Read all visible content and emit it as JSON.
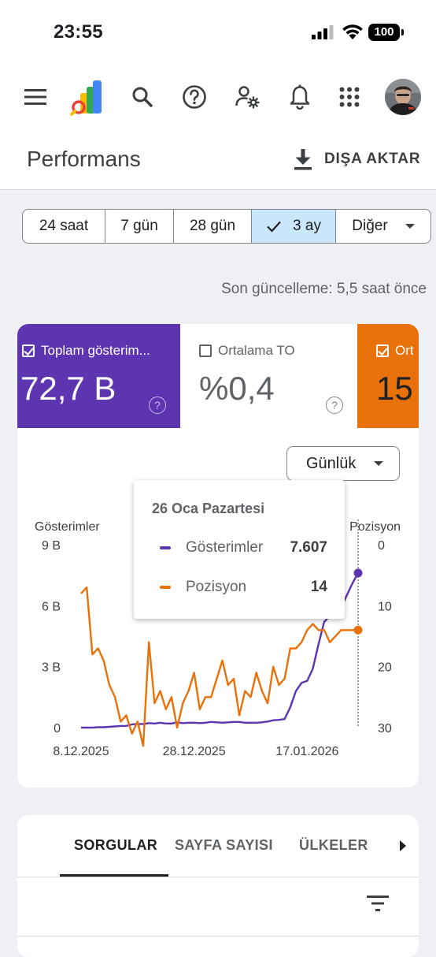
{
  "status": {
    "time": "23:55",
    "battery": "100"
  },
  "appbar": {
    "menu_icon": "hamburger-menu-icon",
    "logo_icon": "search-console-logo-icon",
    "search_icon": "search-icon",
    "help_icon": "help-icon",
    "settings_icon": "account-settings-icon",
    "notifications_icon": "bell-icon",
    "apps_icon": "apps-grid-icon",
    "avatar": "avatar"
  },
  "page": {
    "title": "Performans",
    "export_label": "DIŞA AKTAR"
  },
  "date_ranges": [
    {
      "label": "24 saat",
      "selected": false
    },
    {
      "label": "7 gün",
      "selected": false
    },
    {
      "label": "28 gün",
      "selected": false
    },
    {
      "label": "3 ay",
      "selected": true
    },
    {
      "label": "Diğer",
      "selected": false
    }
  ],
  "last_updated": "Son güncelleme: 5,5 saat önce",
  "metrics": [
    {
      "label": "Toplam gösterim...",
      "value": "72,7 B",
      "checked": true,
      "color": "#5e35b1"
    },
    {
      "label": "Ortalama TO",
      "value": "%0,4",
      "checked": false,
      "color": "#ffffff"
    },
    {
      "label": "Ort",
      "value": "15",
      "checked": true,
      "color": "#e8710a"
    }
  ],
  "granularity": {
    "label": "Günlük"
  },
  "tooltip": {
    "date": "26 Oca Pazartesi",
    "rows": [
      {
        "name": "Gösterimler",
        "value": "7.607",
        "color": "#5e35b1"
      },
      {
        "name": "Pozisyon",
        "value": "14",
        "color": "#e8710a"
      }
    ]
  },
  "chart_data": {
    "type": "line",
    "title": "",
    "x_tick_labels": [
      "8.12.2025",
      "28.12.2025",
      "17.01.2026"
    ],
    "left_axis": {
      "label": "Gösterimler",
      "ticks": [
        "0",
        "3 B",
        "6 B",
        "9 B"
      ],
      "range": [
        0,
        9000
      ]
    },
    "right_axis": {
      "label": "Pozisyon",
      "ticks": [
        "0",
        "10",
        "20",
        "30"
      ],
      "range": [
        0,
        30
      ],
      "inverted": true
    },
    "x": [
      "2025-12-08",
      "2025-12-09",
      "2025-12-10",
      "2025-12-11",
      "2025-12-12",
      "2025-12-13",
      "2025-12-14",
      "2025-12-15",
      "2025-12-16",
      "2025-12-17",
      "2025-12-18",
      "2025-12-19",
      "2025-12-20",
      "2025-12-21",
      "2025-12-22",
      "2025-12-23",
      "2025-12-24",
      "2025-12-25",
      "2025-12-26",
      "2025-12-27",
      "2025-12-28",
      "2025-12-29",
      "2025-12-30",
      "2025-12-31",
      "2026-01-01",
      "2026-01-02",
      "2026-01-03",
      "2026-01-04",
      "2026-01-05",
      "2026-01-06",
      "2026-01-07",
      "2026-01-08",
      "2026-01-09",
      "2026-01-10",
      "2026-01-11",
      "2026-01-12",
      "2026-01-13",
      "2026-01-14",
      "2026-01-15",
      "2026-01-16",
      "2026-01-17",
      "2026-01-18",
      "2026-01-19",
      "2026-01-20",
      "2026-01-21",
      "2026-01-22",
      "2026-01-23",
      "2026-01-24",
      "2026-01-25",
      "2026-01-26"
    ],
    "series": [
      {
        "name": "Gösterimler",
        "axis": "left",
        "color": "#5e35b1",
        "values": [
          0,
          0,
          0,
          20,
          20,
          40,
          60,
          80,
          80,
          160,
          180,
          180,
          220,
          200,
          240,
          200,
          200,
          260,
          220,
          240,
          240,
          220,
          240,
          280,
          260,
          240,
          260,
          280,
          280,
          240,
          240,
          240,
          260,
          300,
          360,
          380,
          420,
          1000,
          1800,
          2200,
          2300,
          2900,
          4100,
          5200,
          5500,
          5600,
          5900,
          6500,
          7100,
          7607
        ]
      },
      {
        "name": "Pozisyon",
        "axis": "right",
        "color": "#e8710a",
        "values": [
          8,
          7,
          18,
          17,
          19,
          23,
          25,
          29,
          28,
          31,
          29,
          33,
          16,
          26,
          24,
          27,
          25,
          30,
          26,
          24,
          21,
          27,
          25,
          25,
          22,
          19,
          23,
          22,
          28,
          24,
          25,
          21,
          24,
          26,
          20,
          23,
          22,
          17,
          17,
          16,
          14,
          13,
          14,
          14,
          16,
          15,
          14,
          14,
          14,
          14
        ]
      }
    ],
    "highlight_x": "2026-01-26",
    "grid": false
  },
  "tabs": [
    {
      "label": "SORGULAR",
      "active": true
    },
    {
      "label": "SAYFA SAYISI",
      "active": false
    },
    {
      "label": "ÜLKELER",
      "active": false
    }
  ],
  "tabs_more_icon": "chevron-right-icon",
  "filter_icon": "filter-icon"
}
